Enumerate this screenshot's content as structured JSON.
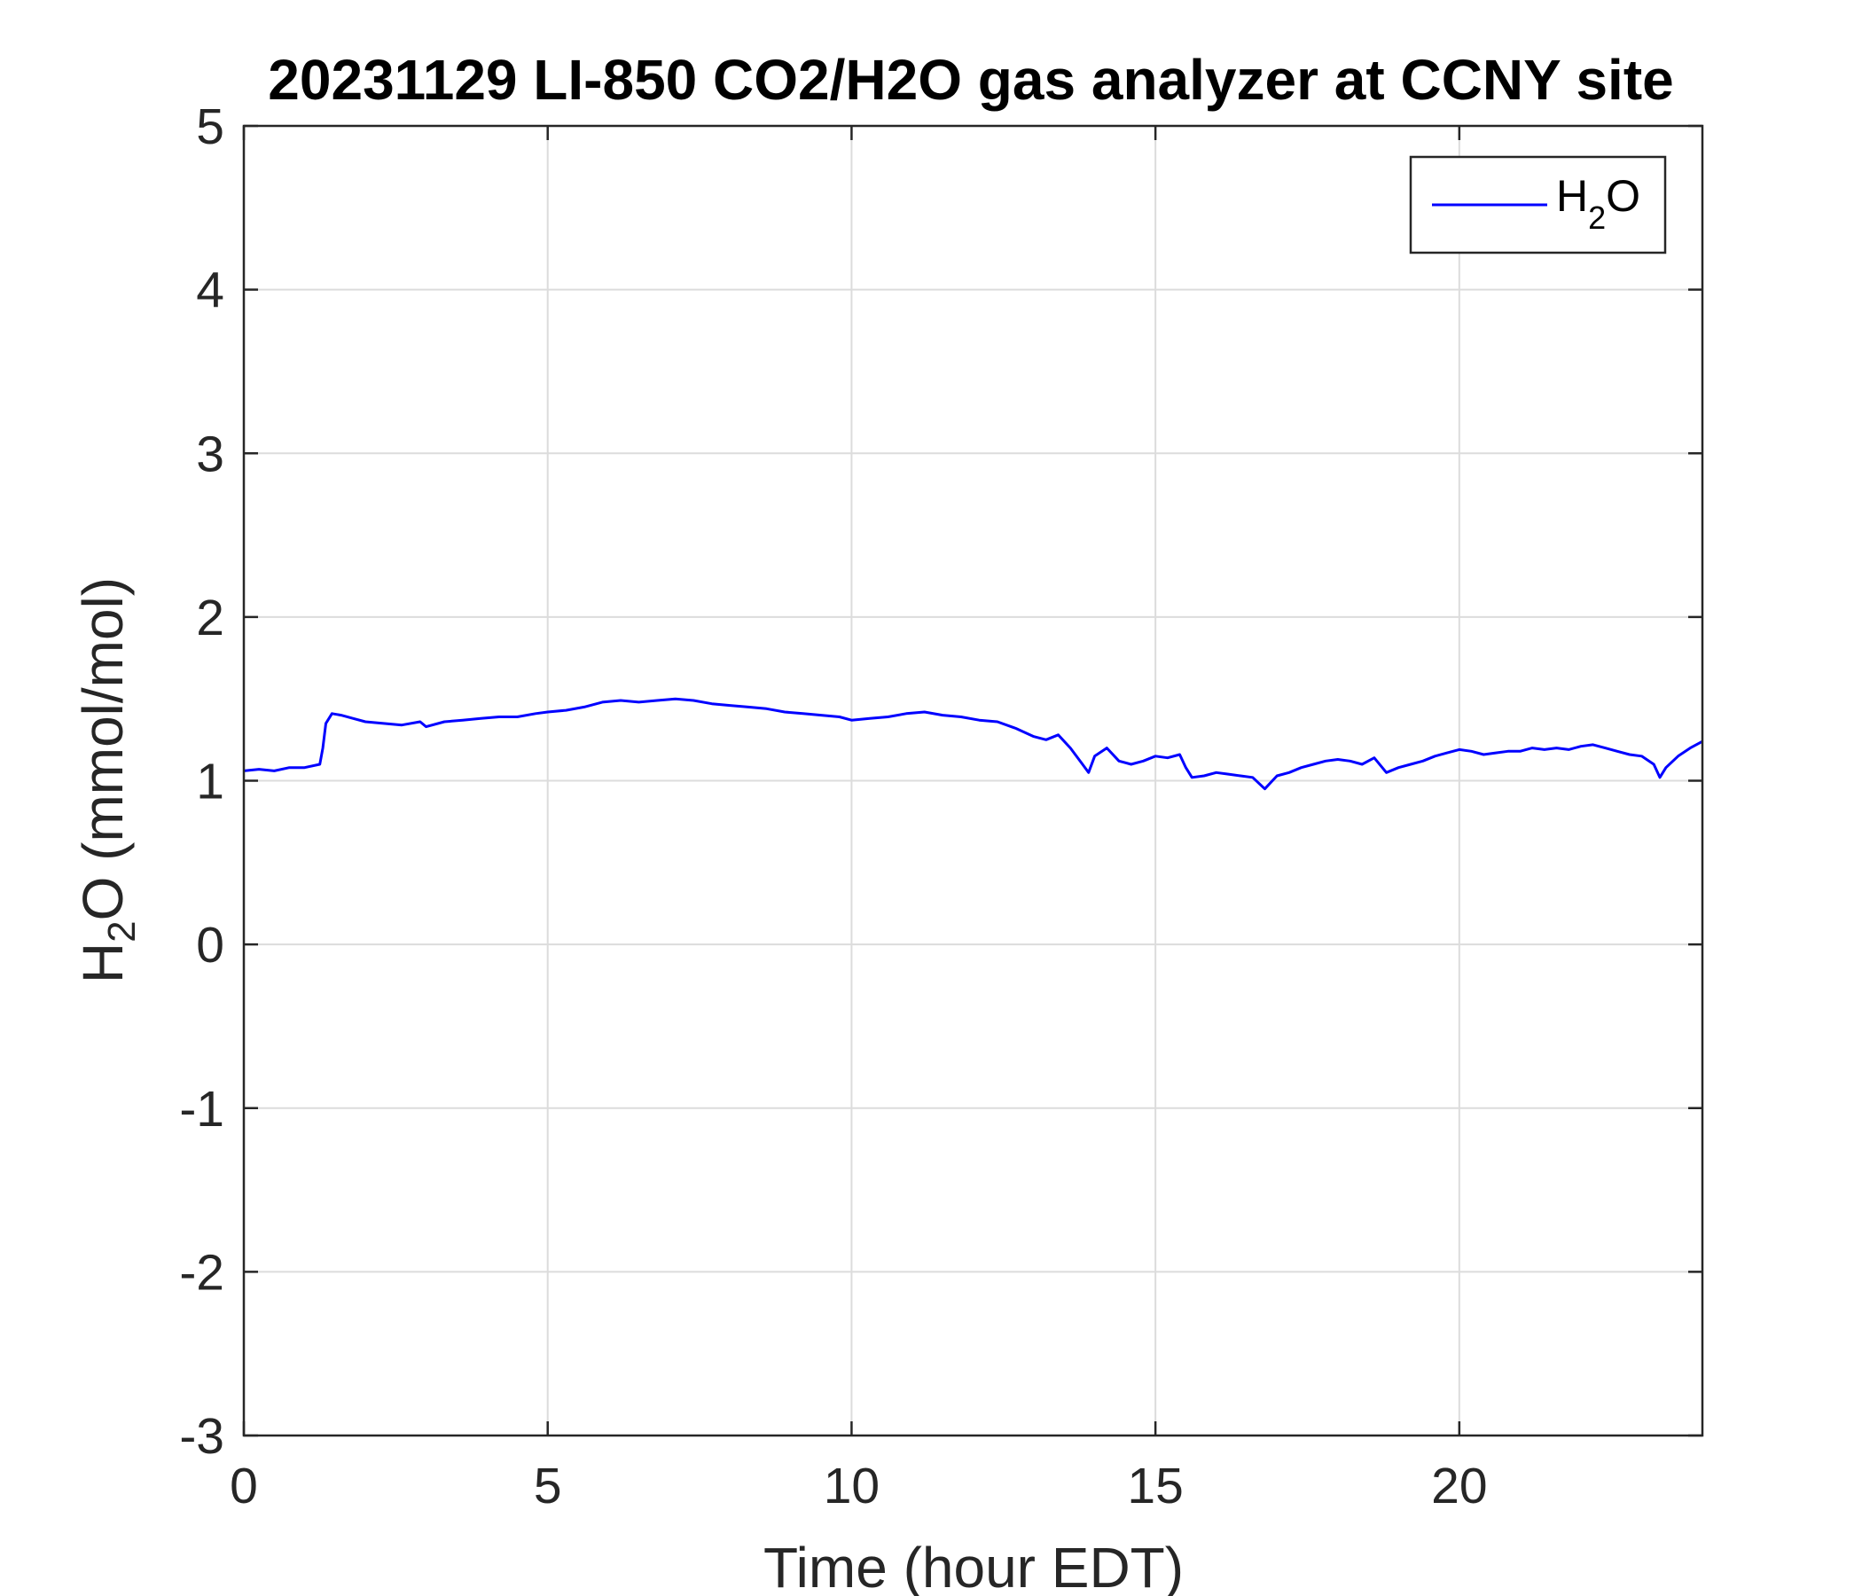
{
  "chart_data": {
    "type": "line",
    "title": "20231129 LI-850 CO2/H2O gas analyzer at CCNY site",
    "xlabel": "Time (hour EDT)",
    "ylabel": {
      "base": "H",
      "sub": "2",
      "rest": "O (mmol/mol)"
    },
    "xlim": [
      0,
      24
    ],
    "ylim": [
      -3,
      5
    ],
    "xticks": [
      "0",
      "5",
      "10",
      "15",
      "20"
    ],
    "yticks": [
      "5",
      "4",
      "3",
      "2",
      "1",
      "0",
      "-1",
      "-2",
      "-3"
    ],
    "grid": true,
    "legend": {
      "position": "top-right",
      "entries": [
        {
          "base": "H",
          "sub": "2",
          "rest": "O"
        }
      ]
    },
    "series": [
      {
        "name": "H2O",
        "color": "#0000ff",
        "x": [
          0,
          0.25,
          0.5,
          0.75,
          1.0,
          1.25,
          1.3,
          1.35,
          1.45,
          1.6,
          1.8,
          2.0,
          2.3,
          2.6,
          2.9,
          3.0,
          3.3,
          3.6,
          3.9,
          4.2,
          4.5,
          4.8,
          5.0,
          5.3,
          5.6,
          5.9,
          6.2,
          6.5,
          6.8,
          7.1,
          7.4,
          7.7,
          8.0,
          8.3,
          8.6,
          8.9,
          9.2,
          9.5,
          9.8,
          10.0,
          10.3,
          10.6,
          10.9,
          11.2,
          11.5,
          11.8,
          12.1,
          12.4,
          12.7,
          13.0,
          13.2,
          13.4,
          13.6,
          13.8,
          13.9,
          14.0,
          14.2,
          14.4,
          14.6,
          14.8,
          15.0,
          15.2,
          15.4,
          15.5,
          15.6,
          15.8,
          16.0,
          16.2,
          16.4,
          16.6,
          16.8,
          17.0,
          17.2,
          17.4,
          17.6,
          17.8,
          18.0,
          18.2,
          18.4,
          18.6,
          18.8,
          19.0,
          19.2,
          19.4,
          19.6,
          19.8,
          20.0,
          20.2,
          20.4,
          20.6,
          20.8,
          21.0,
          21.2,
          21.4,
          21.6,
          21.8,
          22.0,
          22.2,
          22.4,
          22.6,
          22.8,
          23.0,
          23.2,
          23.3,
          23.4,
          23.6,
          23.8,
          24.0
        ],
        "y": [
          1.06,
          1.07,
          1.06,
          1.08,
          1.08,
          1.1,
          1.2,
          1.35,
          1.41,
          1.4,
          1.38,
          1.36,
          1.35,
          1.34,
          1.36,
          1.33,
          1.36,
          1.37,
          1.38,
          1.39,
          1.39,
          1.41,
          1.42,
          1.43,
          1.45,
          1.48,
          1.49,
          1.48,
          1.49,
          1.5,
          1.49,
          1.47,
          1.46,
          1.45,
          1.44,
          1.42,
          1.41,
          1.4,
          1.39,
          1.37,
          1.38,
          1.39,
          1.41,
          1.42,
          1.4,
          1.39,
          1.37,
          1.36,
          1.32,
          1.27,
          1.25,
          1.28,
          1.2,
          1.1,
          1.05,
          1.15,
          1.2,
          1.12,
          1.1,
          1.12,
          1.15,
          1.14,
          1.16,
          1.08,
          1.02,
          1.03,
          1.05,
          1.04,
          1.03,
          1.02,
          0.95,
          1.03,
          1.05,
          1.08,
          1.1,
          1.12,
          1.13,
          1.12,
          1.1,
          1.14,
          1.05,
          1.08,
          1.1,
          1.12,
          1.15,
          1.17,
          1.19,
          1.18,
          1.16,
          1.17,
          1.18,
          1.18,
          1.2,
          1.19,
          1.2,
          1.19,
          1.21,
          1.22,
          1.2,
          1.18,
          1.16,
          1.15,
          1.1,
          1.02,
          1.08,
          1.15,
          1.2,
          1.24
        ]
      }
    ]
  }
}
